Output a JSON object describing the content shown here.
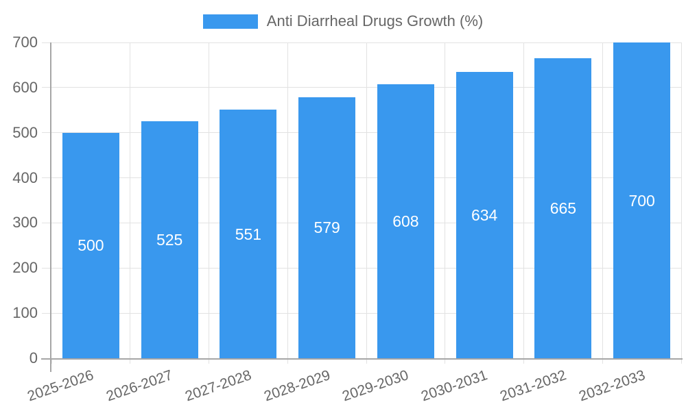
{
  "chart_data": {
    "type": "bar",
    "title": "Anti Diarrheal Drugs Growth (%)",
    "legend": {
      "label": "Anti Diarrheal Drugs Growth (%)",
      "position": "top"
    },
    "categories": [
      "2025-2026",
      "2026-2027",
      "2027-2028",
      "2028-2029",
      "2029-2030",
      "2030-2031",
      "2031-2032",
      "2032-2033"
    ],
    "values": [
      500,
      525,
      551,
      579,
      608,
      634,
      665,
      700
    ],
    "yticks": [
      0,
      100,
      200,
      300,
      400,
      500,
      600,
      700
    ],
    "ylim": [
      0,
      700
    ],
    "xlabel": "",
    "ylabel": "",
    "grid": true,
    "bar_labels_inside": true,
    "colors": {
      "bar": "#3998EE",
      "bar_label": "#FFFFFF",
      "grid_line": "#E2E2E2",
      "axis_line": "#A6A6A6",
      "tick_label": "#666666",
      "background": "#FFFFFF"
    }
  }
}
